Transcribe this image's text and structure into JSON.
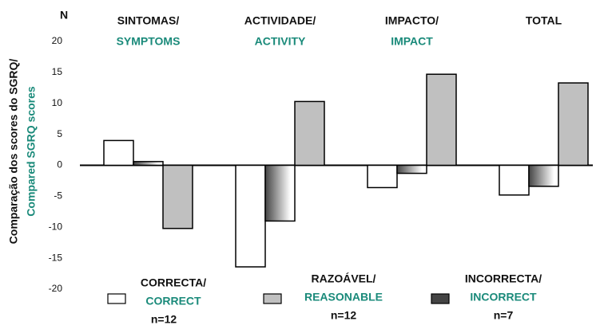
{
  "chart_data": {
    "type": "bar",
    "y_unit": "N",
    "y_label": {
      "pt": "Comparação dos scores do SGRQ/",
      "en": "Compared SGRQ scores"
    },
    "groups": [
      {
        "pt": "SINTOMAS/",
        "en": "SYMPTOMS"
      },
      {
        "pt": "ACTIVIDADE/",
        "en": "ACTIVITY"
      },
      {
        "pt": "IMPACTO/",
        "en": "IMPACT"
      },
      {
        "pt": "TOTAL"
      }
    ],
    "series": [
      {
        "name_pt": "CORRECTA/",
        "name_en": "CORRECT",
        "n": "n=12",
        "color": "#ffffff",
        "values": [
          4.0,
          -16.4,
          -3.6,
          -4.8
        ]
      },
      {
        "name_pt": "INCORRECTA/",
        "name_en": "INCORRECT",
        "n": "n=7",
        "color": "#444444",
        "values": [
          0.6,
          -9.0,
          -1.3,
          -3.4
        ]
      },
      {
        "name_pt": "RAZOÁVEL/",
        "name_en": "REASONABLE",
        "n": "n=12",
        "color": "#c0c0c0",
        "values": [
          -10.2,
          10.3,
          14.7,
          13.3
        ]
      }
    ],
    "ylim": [
      -20,
      20
    ],
    "yticks": [
      20,
      15,
      10,
      5,
      0,
      -5,
      -10,
      -15,
      -20
    ]
  }
}
